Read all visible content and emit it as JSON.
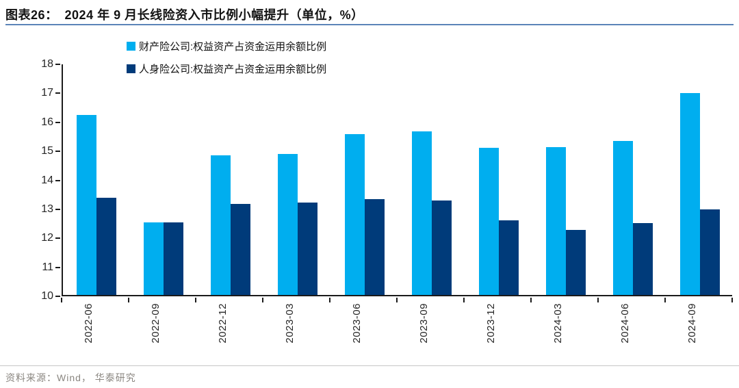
{
  "header": {
    "figure_label": "图表26：",
    "title": "2024 年 9 月长线险资入市比例小幅提升（单位，%）"
  },
  "footer": {
    "source": "资料来源：Wind， 华泰研究"
  },
  "colors": {
    "series_property": "#00AEEF",
    "series_life": "#003B7A",
    "header_rule": "#5b84b8",
    "axis": "#1a1a1a"
  },
  "chart_data": {
    "type": "bar",
    "title": "2024 年 9 月长线险资入市比例小幅提升（单位，%）",
    "categories": [
      "2022-06",
      "2022-09",
      "2022-12",
      "2023-03",
      "2023-06",
      "2023-09",
      "2023-12",
      "2024-03",
      "2024-06",
      "2024-09"
    ],
    "series": [
      {
        "name": "财产险公司:权益资产占资金运用余额比例",
        "color": "#00AEEF",
        "values": [
          16.2,
          12.5,
          14.82,
          14.86,
          15.55,
          15.63,
          15.08,
          15.1,
          15.3,
          16.97
        ]
      },
      {
        "name": "人身险公司:权益资产占资金运用余额比例",
        "color": "#003B7A",
        "values": [
          13.36,
          12.5,
          13.13,
          13.19,
          13.3,
          13.25,
          12.57,
          12.25,
          12.47,
          12.95
        ]
      }
    ],
    "xlabel": "",
    "ylabel": "",
    "ylim": [
      10,
      18
    ],
    "ytick_step": 1,
    "yticks": [
      10,
      11,
      12,
      13,
      14,
      15,
      16,
      17,
      18
    ],
    "grid": false,
    "legend_position": "top-left"
  }
}
